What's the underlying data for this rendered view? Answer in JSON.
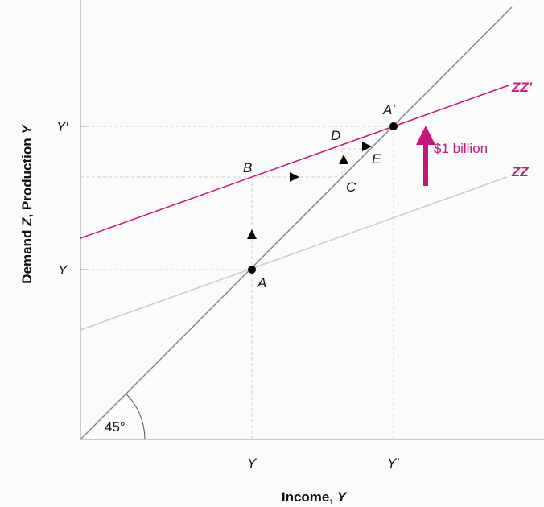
{
  "diagram": {
    "y_axis_title": {
      "prefix": "Demand ",
      "z": "Z",
      "middle": ", Production ",
      "y": "Y"
    },
    "x_axis_title": {
      "prefix": "Income, ",
      "y": "Y"
    },
    "y_ticks": {
      "upper": "Y′",
      "lower": "Y"
    },
    "x_ticks": {
      "left": "Y",
      "right": "Y′"
    },
    "angle_label": "45°",
    "curves": {
      "zz": "ZZ",
      "zz_prime": "ZZ′"
    },
    "points": {
      "A": "A",
      "A_prime": "A′",
      "B": "B",
      "C": "C",
      "D": "D",
      "E": "E"
    },
    "shift_label": "$1 billion",
    "colors": {
      "accent": "#c8157a",
      "axis": "#999999",
      "line_45": "#8a8a8a",
      "zz": "#c9c9c9",
      "guide": "#cfcfcf"
    }
  }
}
